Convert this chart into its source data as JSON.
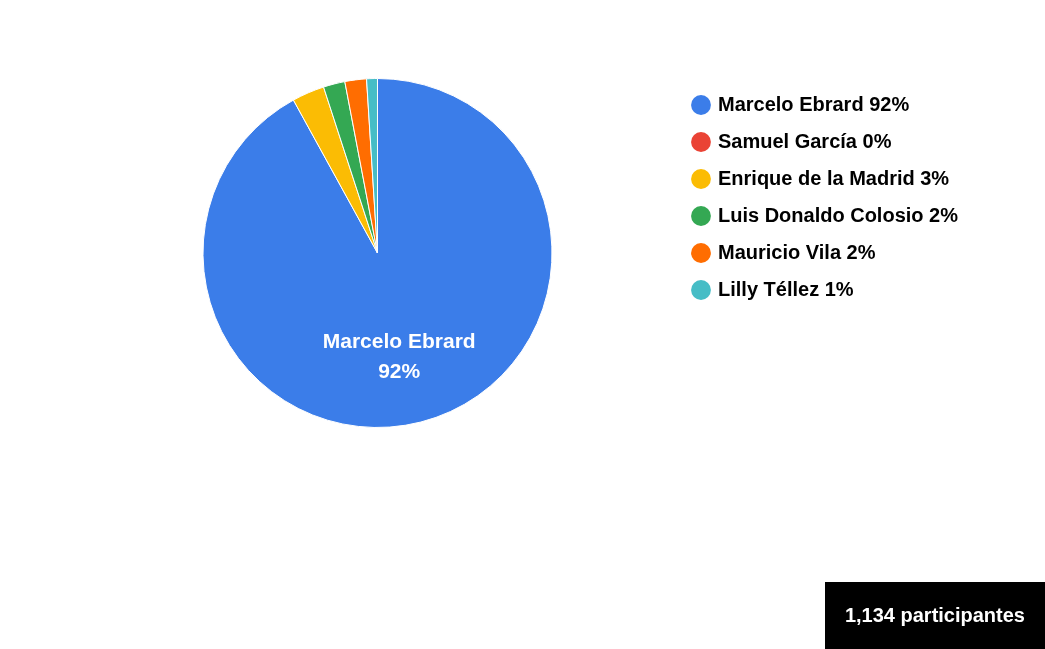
{
  "chart_data": {
    "type": "pie",
    "categories": [
      "Marcelo Ebrard",
      "Samuel García",
      "Enrique de la Madrid",
      "Luis Donaldo Colosio",
      "Mauricio Vila",
      "Lilly Téllez"
    ],
    "values": [
      92,
      0,
      3,
      2,
      2,
      1
    ],
    "value_labels": [
      "92%",
      "0%",
      "3%",
      "2%",
      "2%",
      "1%"
    ],
    "colors": [
      "#3b7de9",
      "#ea4335",
      "#fbbc04",
      "#34a853",
      "#ff6d01",
      "#46bdc6"
    ],
    "legend": "top right",
    "annotations": [
      "1,134 participantes"
    ]
  }
}
